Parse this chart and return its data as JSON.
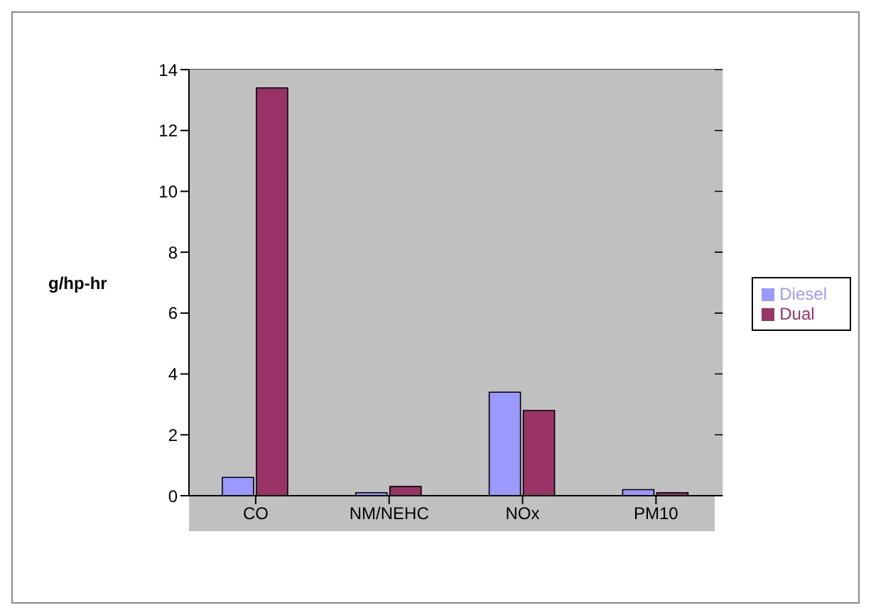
{
  "chart_data": {
    "type": "bar",
    "ylabel": "g/hp-hr",
    "categories": [
      "CO",
      "NM/NEHC",
      "NOx",
      "PM10"
    ],
    "series": [
      {
        "name": "Diesel",
        "color": "#9999ff",
        "values": [
          0.6,
          0.1,
          3.4,
          0.2
        ]
      },
      {
        "name": "Dual",
        "color": "#993366",
        "values": [
          13.4,
          0.3,
          2.8,
          0.1
        ]
      }
    ],
    "ylim": [
      0,
      14
    ],
    "yticks": [
      0,
      2,
      4,
      6,
      8,
      10,
      12,
      14
    ],
    "grid": "y",
    "legend": "right"
  }
}
